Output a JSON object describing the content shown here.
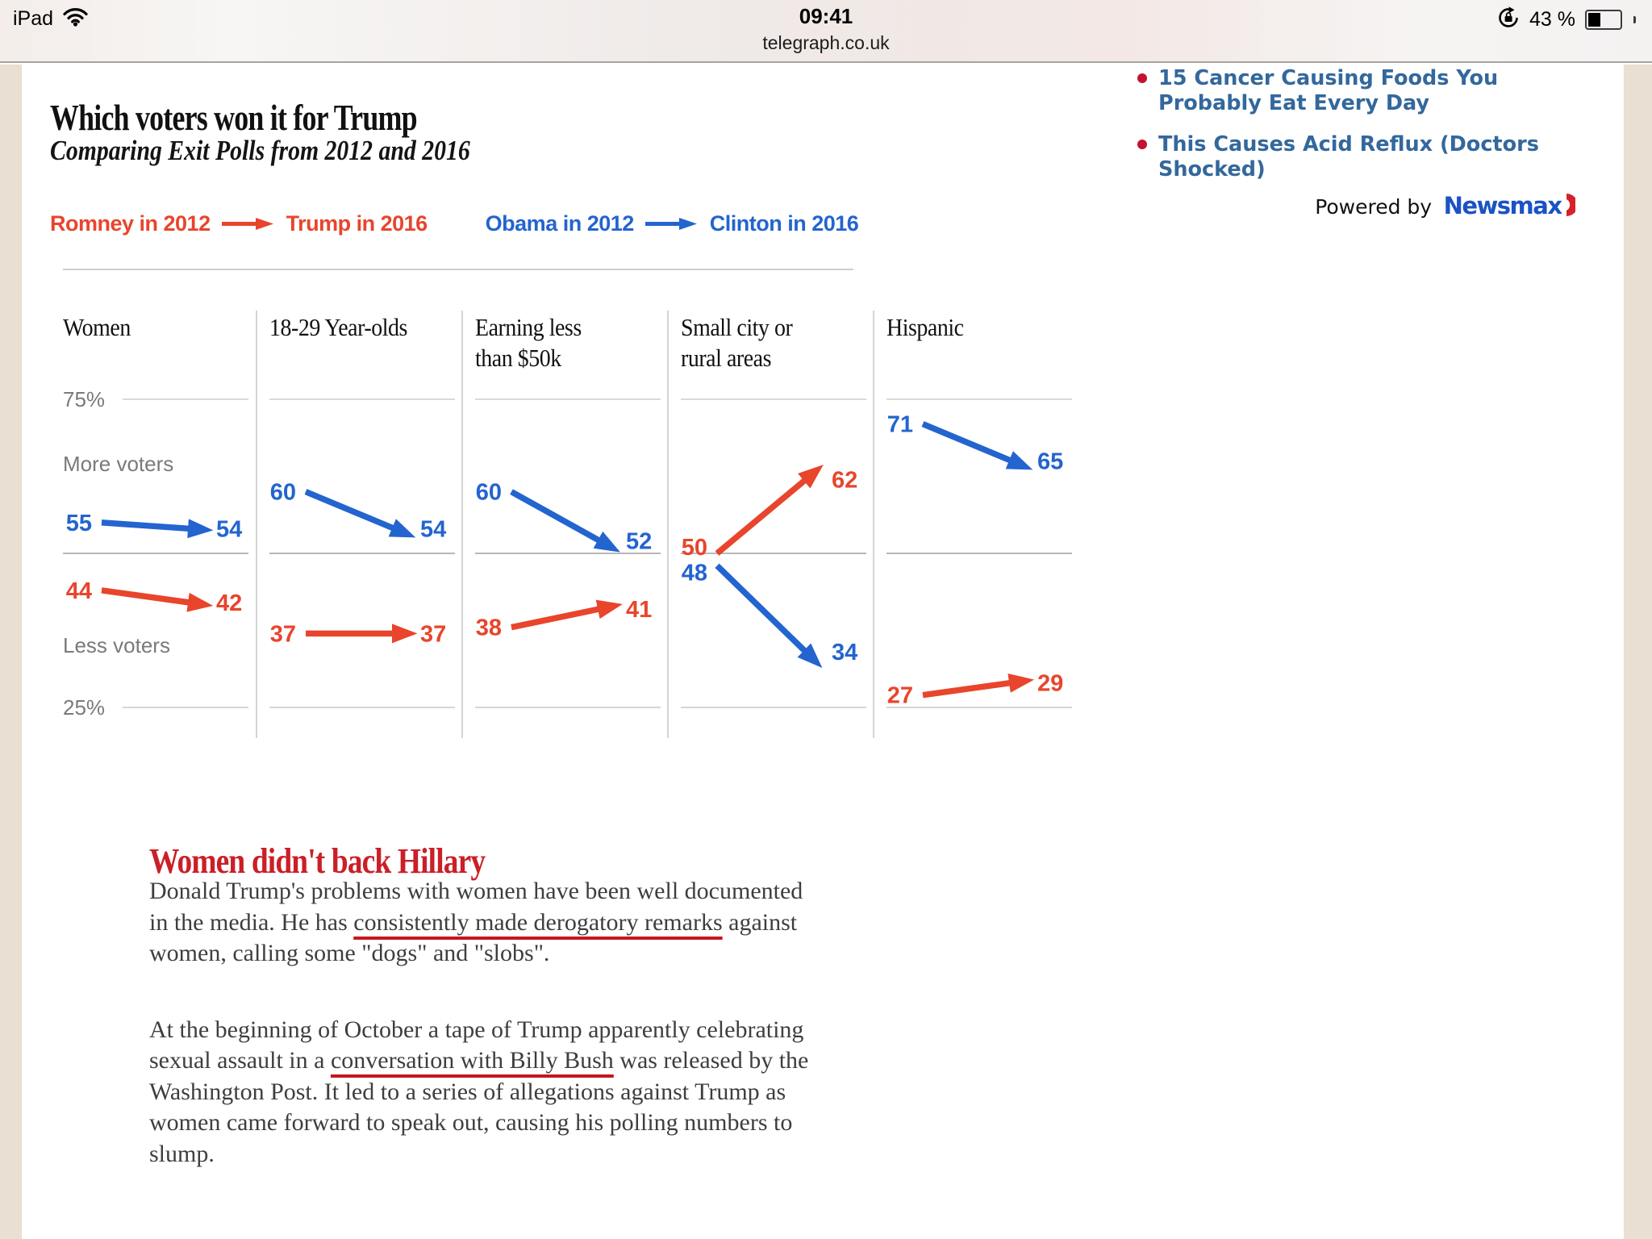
{
  "status_bar": {
    "device": "iPad",
    "time": "09:41",
    "url": "telegraph.co.uk",
    "battery_percent": "43 %"
  },
  "article": {
    "title": "Which voters won it for Trump",
    "subtitle": "Comparing Exit Polls from 2012 and 2016",
    "section_heading": "Women didn't back Hillary",
    "paragraphs": [
      {
        "parts": [
          {
            "text": "Donald Trump's problems with women have been well documented in the media. He has "
          },
          {
            "text": "consistently made derogatory remarks",
            "link": true
          },
          {
            "text": " against women, calling some \"dogs\" and \"slobs\"."
          }
        ]
      },
      {
        "parts": [
          {
            "text": "At the beginning of October a tape of Trump apparently celebrating sexual assault in a "
          },
          {
            "text": "conversation with Billy Bush",
            "link": true
          },
          {
            "text": " was released by the Washington Post. It led to a series of allegations against Trump as women came forward to speak out, causing his polling numbers to slump."
          }
        ]
      }
    ]
  },
  "chart_data": {
    "type": "slope",
    "title": "Which voters won it for Trump",
    "subtitle": "Comparing Exit Polls from 2012 and 2016",
    "legend": [
      {
        "from": "Romney in 2012",
        "to": "Trump in 2016",
        "party": "republican"
      },
      {
        "from": "Obama in 2012",
        "to": "Clinton in 2016",
        "party": "democrat"
      }
    ],
    "colors": {
      "republican": "#e8452c",
      "democrat": "#2364cf"
    },
    "y_axis": {
      "max_label": "75%",
      "above_label": "More voters",
      "below_label": "Less voters",
      "min_label": "25%",
      "range": [
        25,
        75
      ],
      "midline": 50,
      "units": "percent of vote share"
    },
    "panels": [
      {
        "label": "Women",
        "series": [
          {
            "party": "democrat",
            "from": 55,
            "to": 54
          },
          {
            "party": "republican",
            "from": 44,
            "to": 42
          }
        ]
      },
      {
        "label": "18-29 Year-olds",
        "series": [
          {
            "party": "democrat",
            "from": 60,
            "to": 54
          },
          {
            "party": "republican",
            "from": 37,
            "to": 37
          }
        ]
      },
      {
        "label": "Earning less\nthan $50k",
        "series": [
          {
            "party": "democrat",
            "from": 60,
            "to": 52
          },
          {
            "party": "republican",
            "from": 38,
            "to": 41
          }
        ]
      },
      {
        "label": "Small city or\nrural areas",
        "series": [
          {
            "party": "republican",
            "from": 50,
            "to": 62,
            "from_label_nudge": -8
          },
          {
            "party": "democrat",
            "from": 48,
            "to": 34,
            "from_label_nudge": 8
          }
        ]
      },
      {
        "label": "Hispanic",
        "series": [
          {
            "party": "democrat",
            "from": 71,
            "to": 65
          },
          {
            "party": "republican",
            "from": 27,
            "to": 29
          }
        ]
      }
    ]
  },
  "sidebar_ads": {
    "items": [
      "15 Cancer Causing Foods You Probably Eat Every Day",
      "This Causes Acid Reflux (Doctors Shocked)"
    ],
    "powered_by": "Powered by",
    "brand": "Newsmax",
    "link_color": "#33689c",
    "bullet_color": "#c41230"
  }
}
